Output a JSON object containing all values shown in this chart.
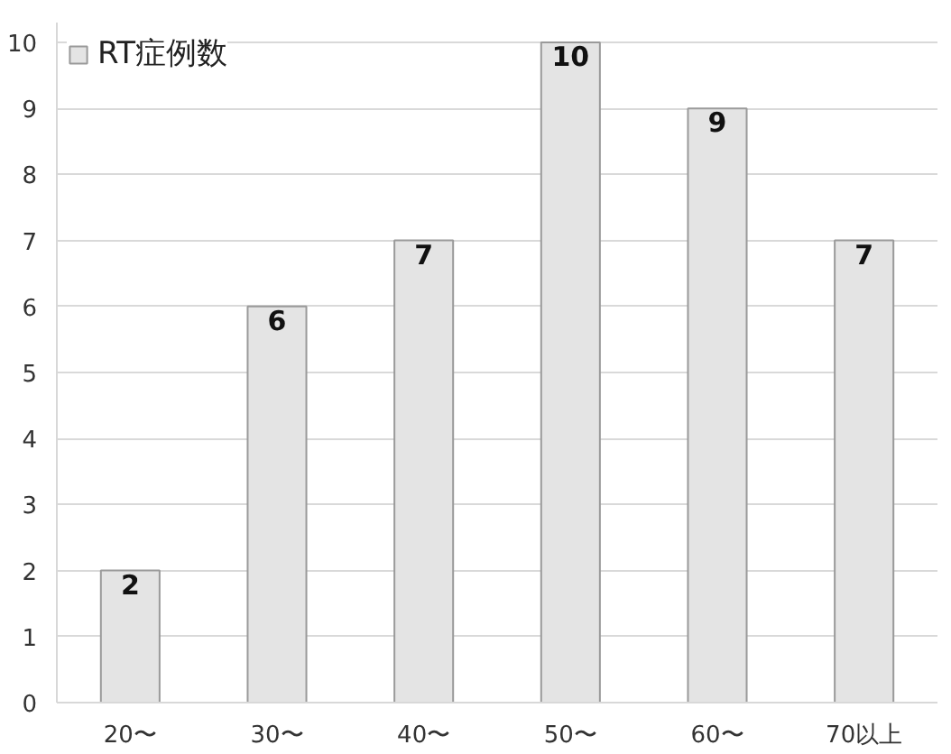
{
  "chart_data": {
    "type": "bar",
    "categories": [
      "20〜",
      "30〜",
      "40〜",
      "50〜",
      "60〜",
      "70以上"
    ],
    "series": [
      {
        "name": "RT症例数",
        "color": "#e4e4e4",
        "values": [
          2,
          6,
          7,
          10,
          9,
          7
        ]
      }
    ],
    "ylim": [
      0,
      10.3
    ],
    "yticks": [
      0,
      1,
      2,
      3,
      4,
      5,
      6,
      7,
      8,
      9,
      10
    ],
    "grid": "y",
    "legend": "top left",
    "data_labels": true
  }
}
